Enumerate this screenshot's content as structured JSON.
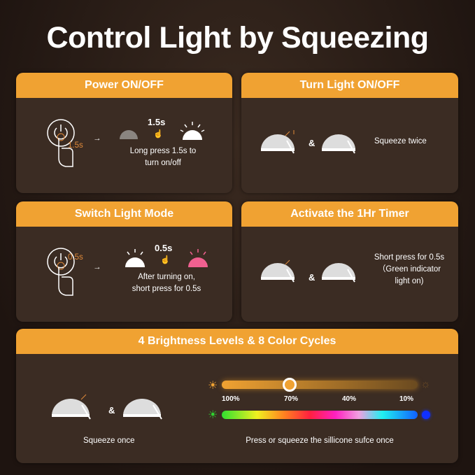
{
  "title": "Control Light by Squeezing",
  "cards": {
    "power": {
      "header": "Power ON/OFF",
      "badge": "1.5s",
      "time": "1.5s",
      "desc_1": "Long press 1.5s to",
      "desc_2": "turn on/off"
    },
    "turn": {
      "header": "Turn Light ON/OFF",
      "amp": "&",
      "desc": "Squeeze twice"
    },
    "mode": {
      "header": "Switch Light Mode",
      "badge": "0.5s",
      "time": "0.5s",
      "desc_1": "After turning on,",
      "desc_2": "short press for 0.5s"
    },
    "timer": {
      "header": "Activate the 1Hr Timer",
      "amp": "&",
      "desc_1": "Short press for 0.5s",
      "desc_2": "（Green indicator",
      "desc_3": "light on)"
    },
    "bright": {
      "header": "4 Brightness Levels & 8 Color Cycles",
      "amp": "&",
      "squeeze": "Squeeze once",
      "levels": [
        "100%",
        "70%",
        "40%",
        "10%"
      ],
      "current_level": "70%",
      "desc": "Press or squeeze the sillicone sufce once"
    }
  },
  "colors": {
    "accent": "#f0a232",
    "card": "#3b2c23",
    "green": "#2fd12f",
    "blue": "#1030ff"
  }
}
